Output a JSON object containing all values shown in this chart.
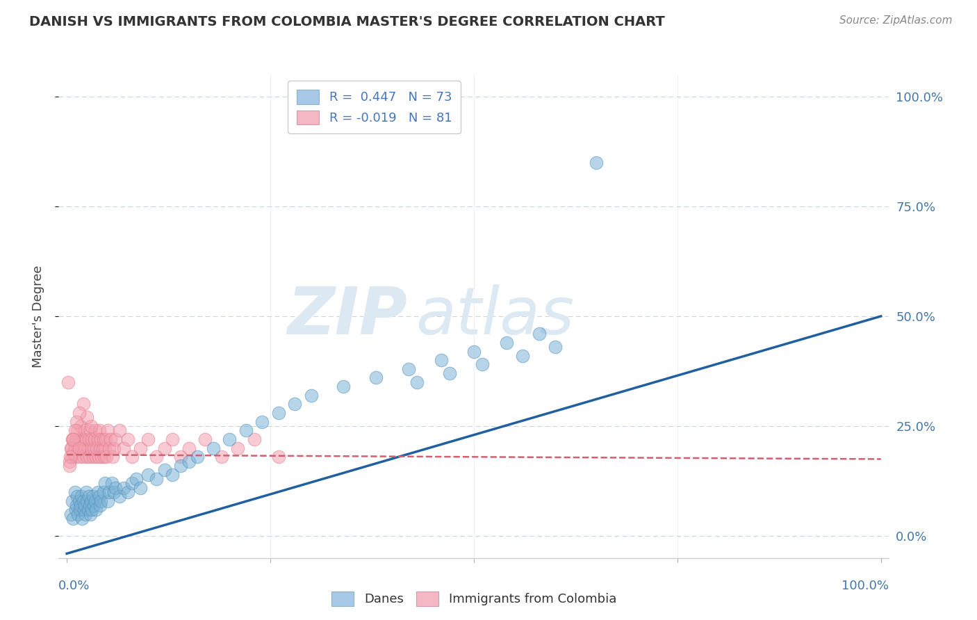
{
  "title": "DANISH VS IMMIGRANTS FROM COLOMBIA MASTER'S DEGREE CORRELATION CHART",
  "source_text": "Source: ZipAtlas.com",
  "ylabel": "Master's Degree",
  "blue_color": "#7ab3d8",
  "blue_edge_color": "#5a93b8",
  "pink_color": "#f4a0b0",
  "pink_edge_color": "#e08090",
  "blue_line_color": "#2060a0",
  "pink_line_color": "#d06070",
  "background_color": "#ffffff",
  "grid_color": "#c8d4e8",
  "watermark_color": "#dce8f2",
  "blue_R": 0.447,
  "blue_N": 73,
  "pink_R": -0.019,
  "pink_N": 81,
  "blue_line_x0": 0.0,
  "blue_line_y0": -0.04,
  "blue_line_x1": 1.0,
  "blue_line_y1": 0.5,
  "pink_line_x0": 0.0,
  "pink_line_y0": 0.185,
  "pink_line_x1": 1.0,
  "pink_line_y1": 0.175,
  "ylim_min": -0.05,
  "ylim_max": 1.05,
  "xlim_min": -0.01,
  "xlim_max": 1.01,
  "danes_x": [
    0.005,
    0.007,
    0.008,
    0.01,
    0.011,
    0.012,
    0.013,
    0.014,
    0.015,
    0.016,
    0.017,
    0.018,
    0.019,
    0.02,
    0.021,
    0.022,
    0.023,
    0.024,
    0.025,
    0.026,
    0.027,
    0.028,
    0.029,
    0.03,
    0.031,
    0.032,
    0.033,
    0.035,
    0.036,
    0.038,
    0.04,
    0.041,
    0.042,
    0.045,
    0.047,
    0.05,
    0.052,
    0.055,
    0.058,
    0.06,
    0.065,
    0.07,
    0.075,
    0.08,
    0.085,
    0.09,
    0.1,
    0.11,
    0.12,
    0.13,
    0.14,
    0.15,
    0.16,
    0.18,
    0.2,
    0.22,
    0.24,
    0.26,
    0.28,
    0.3,
    0.34,
    0.38,
    0.42,
    0.46,
    0.5,
    0.54,
    0.58,
    0.43,
    0.47,
    0.51,
    0.56,
    0.6,
    0.65
  ],
  "danes_y": [
    0.05,
    0.08,
    0.04,
    0.1,
    0.06,
    0.07,
    0.09,
    0.05,
    0.08,
    0.06,
    0.07,
    0.09,
    0.04,
    0.08,
    0.06,
    0.07,
    0.05,
    0.1,
    0.08,
    0.06,
    0.09,
    0.07,
    0.05,
    0.08,
    0.06,
    0.09,
    0.07,
    0.08,
    0.06,
    0.1,
    0.09,
    0.07,
    0.08,
    0.1,
    0.12,
    0.08,
    0.1,
    0.12,
    0.1,
    0.11,
    0.09,
    0.11,
    0.1,
    0.12,
    0.13,
    0.11,
    0.14,
    0.13,
    0.15,
    0.14,
    0.16,
    0.17,
    0.18,
    0.2,
    0.22,
    0.24,
    0.26,
    0.28,
    0.3,
    0.32,
    0.34,
    0.36,
    0.38,
    0.4,
    0.42,
    0.44,
    0.46,
    0.35,
    0.37,
    0.39,
    0.41,
    0.43,
    0.85
  ],
  "colombia_x": [
    0.003,
    0.005,
    0.006,
    0.007,
    0.008,
    0.009,
    0.01,
    0.011,
    0.012,
    0.013,
    0.014,
    0.015,
    0.016,
    0.017,
    0.018,
    0.019,
    0.02,
    0.021,
    0.022,
    0.023,
    0.024,
    0.025,
    0.026,
    0.027,
    0.028,
    0.029,
    0.03,
    0.031,
    0.032,
    0.033,
    0.034,
    0.035,
    0.036,
    0.037,
    0.038,
    0.039,
    0.04,
    0.041,
    0.042,
    0.043,
    0.044,
    0.045,
    0.046,
    0.047,
    0.048,
    0.049,
    0.05,
    0.052,
    0.054,
    0.056,
    0.058,
    0.06,
    0.065,
    0.07,
    0.075,
    0.08,
    0.09,
    0.1,
    0.11,
    0.12,
    0.13,
    0.14,
    0.15,
    0.17,
    0.19,
    0.21,
    0.23,
    0.26,
    0.03,
    0.025,
    0.02,
    0.015,
    0.012,
    0.01,
    0.008,
    0.006,
    0.004,
    0.003,
    0.002,
    0.008,
    0.015
  ],
  "colombia_y": [
    0.17,
    0.2,
    0.18,
    0.22,
    0.19,
    0.21,
    0.2,
    0.18,
    0.22,
    0.24,
    0.2,
    0.22,
    0.18,
    0.25,
    0.22,
    0.2,
    0.18,
    0.22,
    0.24,
    0.2,
    0.22,
    0.18,
    0.2,
    0.22,
    0.18,
    0.24,
    0.2,
    0.22,
    0.18,
    0.2,
    0.22,
    0.24,
    0.18,
    0.2,
    0.22,
    0.18,
    0.24,
    0.2,
    0.22,
    0.18,
    0.2,
    0.22,
    0.18,
    0.2,
    0.22,
    0.18,
    0.24,
    0.2,
    0.22,
    0.18,
    0.2,
    0.22,
    0.24,
    0.2,
    0.22,
    0.18,
    0.2,
    0.22,
    0.18,
    0.2,
    0.22,
    0.18,
    0.2,
    0.22,
    0.18,
    0.2,
    0.22,
    0.18,
    0.25,
    0.27,
    0.3,
    0.28,
    0.26,
    0.24,
    0.22,
    0.2,
    0.18,
    0.16,
    0.35,
    0.22,
    0.2
  ]
}
